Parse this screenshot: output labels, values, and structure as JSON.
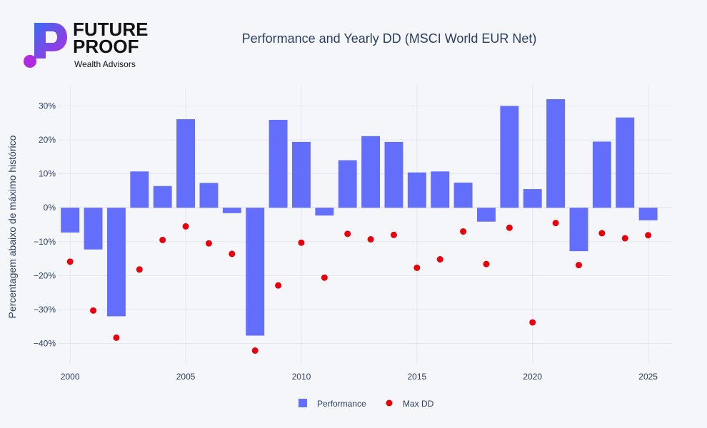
{
  "logo": {
    "line1": "FUTURE",
    "line2": "PROOF",
    "line3": "Wealth Advisors"
  },
  "colors": {
    "performance": "#636efa",
    "max_dd": "#e8000b",
    "grid": "#e3e6ef",
    "background": "#f5f6fa"
  },
  "chart_data": {
    "type": "bar",
    "title": "Performance and Yearly DD (MSCI World EUR Net)",
    "xlabel": "",
    "ylabel": "Percentagem abaixo de máximo histórico",
    "x": [
      2000,
      2001,
      2002,
      2003,
      2004,
      2005,
      2006,
      2007,
      2008,
      2009,
      2010,
      2011,
      2012,
      2013,
      2014,
      2015,
      2016,
      2017,
      2018,
      2019,
      2020,
      2021,
      2022,
      2023,
      2024,
      2025
    ],
    "x_ticks": [
      2000,
      2005,
      2010,
      2015,
      2020,
      2025
    ],
    "xlim": [
      1999.5,
      2026
    ],
    "y_ticks": [
      30,
      20,
      10,
      0,
      -10,
      -20,
      -30,
      -40
    ],
    "y_tick_labels": [
      "30%",
      "20%",
      "10%",
      "0%",
      "−10%",
      "−20%",
      "−30%",
      "−40%"
    ],
    "ylim": [
      -46,
      36
    ],
    "grid": true,
    "legend_position": "bottom-center",
    "series": [
      {
        "name": "Performance",
        "type": "bar",
        "values": [
          -7.3,
          -12.3,
          -32.0,
          10.7,
          6.4,
          26.1,
          7.3,
          -1.6,
          -37.7,
          25.9,
          19.4,
          -2.3,
          14.0,
          21.1,
          19.4,
          10.4,
          10.7,
          7.4,
          -4.1,
          30.0,
          5.5,
          32.0,
          -12.8,
          19.5,
          26.6,
          -3.7
        ]
      },
      {
        "name": "Max DD",
        "type": "scatter",
        "values": [
          -15.9,
          -30.3,
          -38.3,
          -18.2,
          -9.5,
          -5.5,
          -10.5,
          -13.6,
          -42.1,
          -22.9,
          -10.3,
          -20.6,
          -7.7,
          -9.3,
          -8.0,
          -17.7,
          -15.2,
          -7.0,
          -16.6,
          -5.9,
          -33.8,
          -4.5,
          -16.9,
          -7.5,
          -9.0,
          -8.1
        ]
      }
    ]
  }
}
